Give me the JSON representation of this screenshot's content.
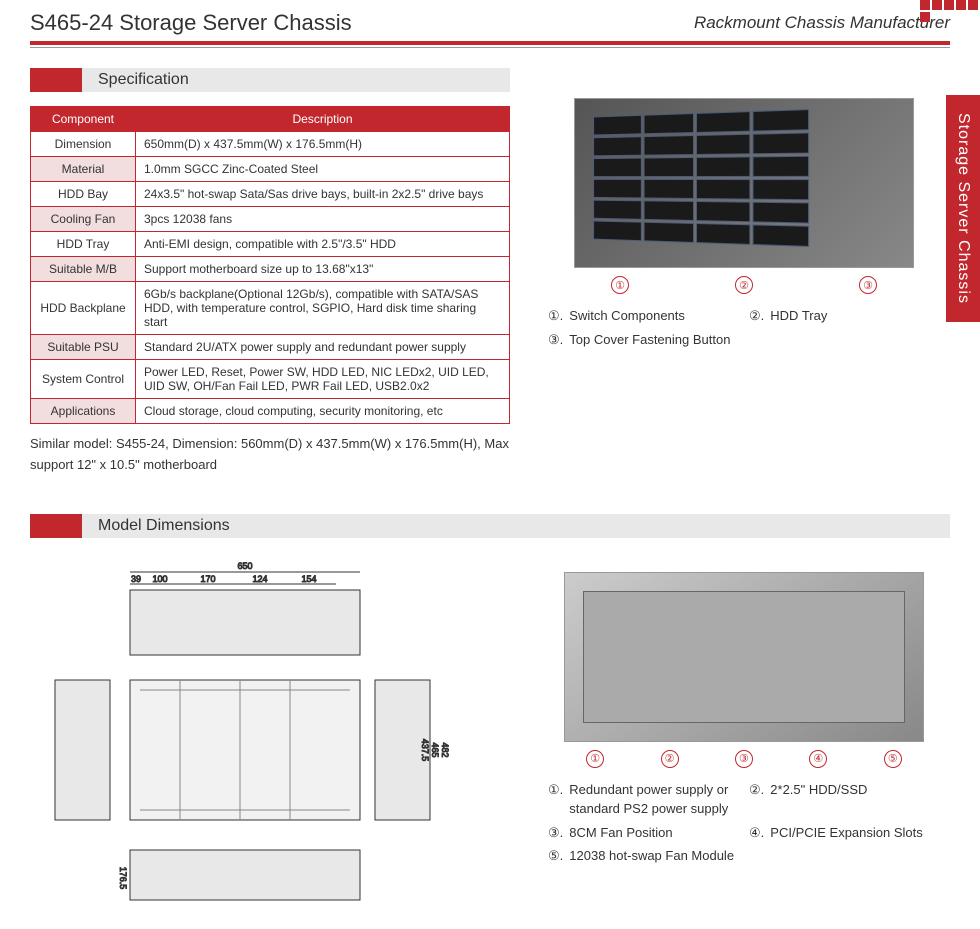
{
  "header": {
    "title": "S465-24 Storage Server Chassis",
    "subtitle": "Rackmount Chassis Manufacturer"
  },
  "side_tab": "Storage Server Chassis",
  "colors": {
    "accent": "#c1272d",
    "light_gray": "#e8e8e8",
    "text": "#333333"
  },
  "sections": {
    "spec_title": "Specification",
    "dims_title": "Model Dimensions"
  },
  "spec_table": {
    "headers": [
      "Component",
      "Description"
    ],
    "rows": [
      [
        "Dimension",
        "650mm(D) x 437.5mm(W) x 176.5mm(H)"
      ],
      [
        "Material",
        "1.0mm SGCC Zinc-Coated Steel"
      ],
      [
        "HDD Bay",
        "24x3.5\" hot-swap Sata/Sas drive bays, built-in 2x2.5\" drive bays"
      ],
      [
        "Cooling Fan",
        "3pcs 12038 fans"
      ],
      [
        "HDD Tray",
        "Anti-EMI design, compatible with 2.5\"/3.5\" HDD"
      ],
      [
        "Suitable M/B",
        "Support motherboard size up to 13.68\"x13\""
      ],
      [
        "HDD Backplane",
        "6Gb/s backplane(Optional 12Gb/s), compatible with SATA/SAS HDD, with temperature control, SGPIO, Hard disk time sharing start"
      ],
      [
        "Suitable PSU",
        "Standard 2U/ATX power supply and redundant power supply"
      ],
      [
        "System Control",
        "Power LED, Reset, Power SW, HDD LED, NIC LEDx2, UID LED, UID SW, OH/Fan Fail LED, PWR Fail LED, USB2.0x2"
      ],
      [
        "Applications",
        "Cloud storage, cloud computing,  security monitoring, etc"
      ]
    ]
  },
  "similar_note": "Similar model: S455-24, Dimension: 560mm(D) x 437.5mm(W) x 176.5mm(H), Max support 12\" x 10.5\" motherboard",
  "front_legend": [
    {
      "num": "①",
      "text": "Switch Components"
    },
    {
      "num": "②",
      "text": "HDD Tray"
    },
    {
      "num": "③",
      "text": "Top Cover Fastening Button"
    }
  ],
  "back_legend": [
    {
      "num": "①",
      "text": "Redundant power supply or standard PS2 power supply"
    },
    {
      "num": "②",
      "text": "2*2.5\" HDD/SSD"
    },
    {
      "num": "③",
      "text": "8CM Fan Position"
    },
    {
      "num": "④",
      "text": "PCI/PCIE Expansion Slots"
    },
    {
      "num": "⑤",
      "text": "12038 hot-swap Fan Module"
    }
  ],
  "front_callouts": [
    "①",
    "②",
    "③"
  ],
  "back_callouts": [
    "①",
    "②",
    "③",
    "④",
    "⑤"
  ],
  "dimensions": {
    "top_total": "650",
    "top_segments": [
      "39",
      "100",
      "170",
      "124",
      "154"
    ],
    "side_width": "482",
    "side_inner": "465",
    "side_inner2": "437.5",
    "height": "176.5"
  }
}
